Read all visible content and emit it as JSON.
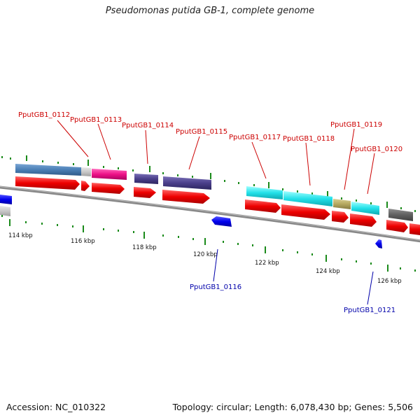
{
  "title": "Pseudomonas putida GB-1, complete genome",
  "footer": {
    "accession": "Accession: NC_010322",
    "summary": "Topology: circular; Length: 6,078,430 bp; Genes: 5,506"
  },
  "scale": {
    "ticks": [
      "114 kbp",
      "116 kbp",
      "118 kbp",
      "120 kbp",
      "122 kbp",
      "124 kbp",
      "126 kbp"
    ]
  },
  "genes_top": [
    "PputGB1_0112",
    "PputGB1_0113",
    "PputGB1_0114",
    "PputGB1_0115",
    "PputGB1_0117",
    "PputGB1_0118",
    "PputGB1_0119",
    "PputGB1_0120"
  ],
  "genes_bottom": [
    "PputGB1_0116",
    "PputGB1_0121"
  ],
  "colors": {
    "forward_cds": "#ee0000",
    "reverse_cds": "#0000dd",
    "backbone": "#888888",
    "tick": "#1a8a1a",
    "cog_steelblue": "#4a7fb5",
    "cog_pink": "#ee1188",
    "cog_purple": "#4a3f8a",
    "cog_cyan": "#22e0e8",
    "cog_khaki": "#b5a860",
    "cog_gray": "#606060",
    "cog_lightgray": "#c8c8c8"
  }
}
